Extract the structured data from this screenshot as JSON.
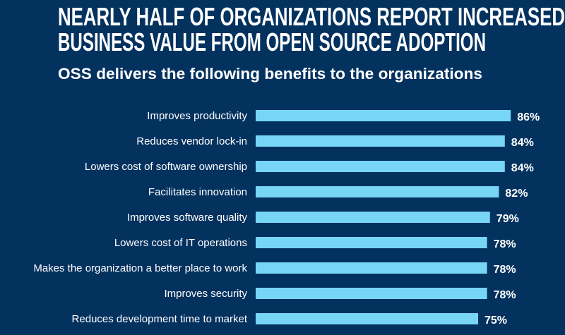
{
  "chart_data": {
    "type": "bar",
    "orientation": "horizontal",
    "title": "NEARLY HALF OF ORGANIZATIONS REPORT INCREASED BUSINESS VALUE FROM OPEN SOURCE ADOPTION",
    "title_lines": [
      "NEARLY HALF OF ORGANIZATIONS REPORT INCREASED",
      "BUSINESS VALUE FROM OPEN SOURCE ADOPTION"
    ],
    "subtitle": "OSS delivers the following benefits to the organizations",
    "categories": [
      "Improves productivity",
      "Reduces vendor lock-in",
      "Lowers cost of software ownership",
      "Facilitates innovation",
      "Improves software quality",
      "Lowers cost of IT operations",
      "Makes the organization a better place to work",
      "Improves security",
      "Reduces development time to market"
    ],
    "values": [
      86,
      84,
      84,
      82,
      79,
      78,
      78,
      78,
      75
    ],
    "value_labels": [
      "86%",
      "84%",
      "84%",
      "82%",
      "79%",
      "78%",
      "78%",
      "78%",
      "75%"
    ],
    "xlim": [
      0,
      100
    ],
    "grid": false,
    "legend": "none",
    "colors": {
      "background": "#04325f",
      "bar": "#77d6f5",
      "text": "#ffffff"
    }
  }
}
